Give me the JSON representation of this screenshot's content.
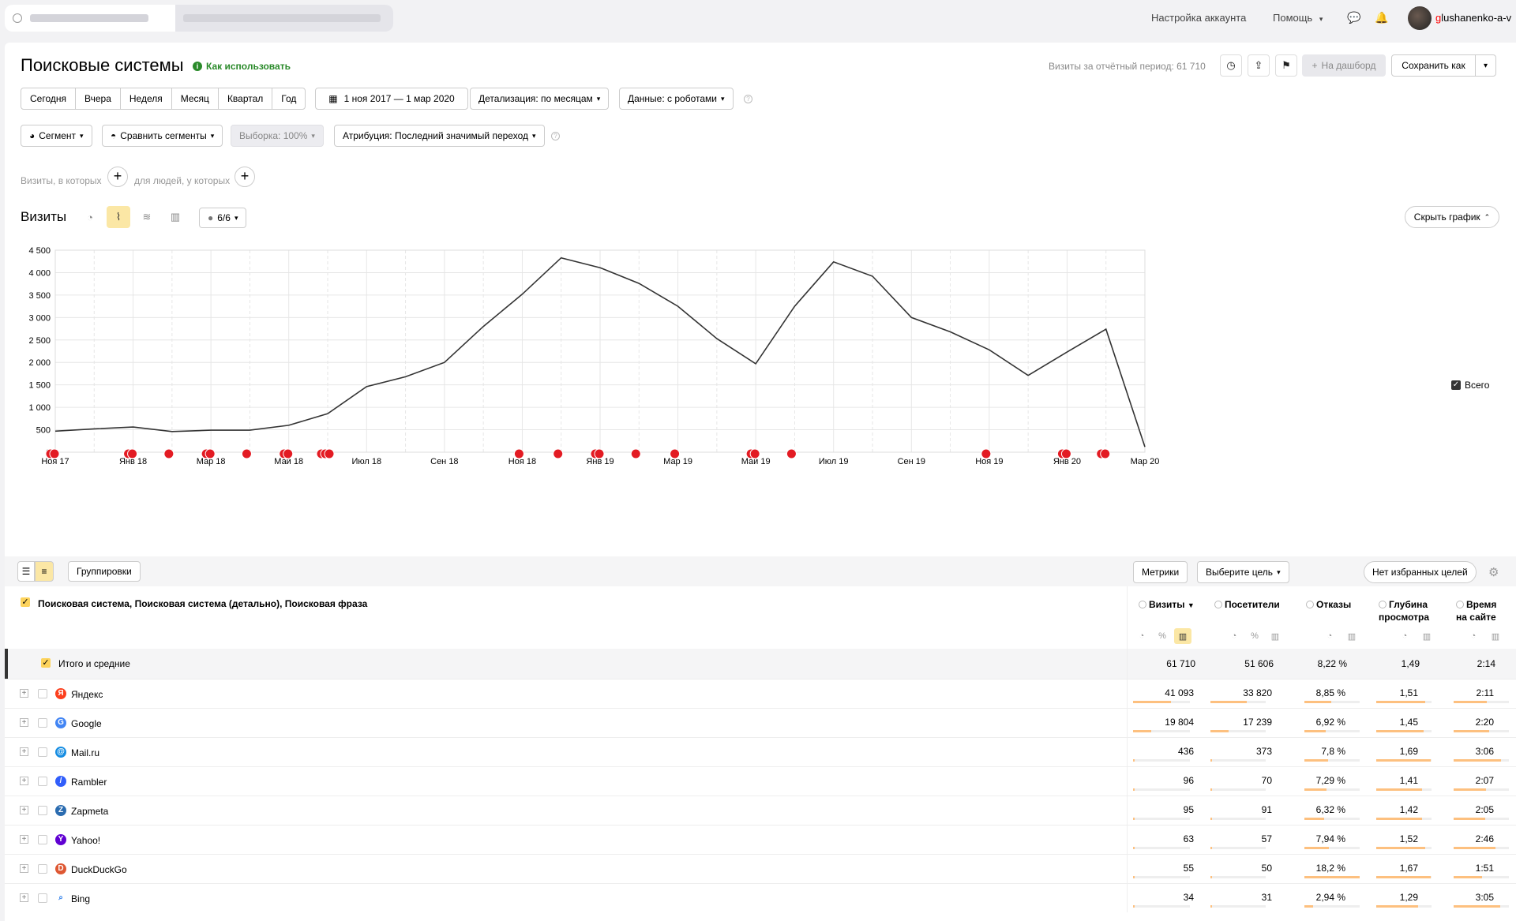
{
  "topbar": {
    "account_settings": "Настройка аккаунта",
    "help": "Помощь",
    "username_first": "g",
    "username_rest": "lushanenko-a-v"
  },
  "header": {
    "title": "Поисковые системы",
    "how_to_use": "Как использовать",
    "visits_period": "Визиты за отчётный период: 61 710",
    "dashboard": "На дашборд",
    "save_as": "Сохранить как"
  },
  "periods": [
    "Сегодня",
    "Вчера",
    "Неделя",
    "Месяц",
    "Квартал",
    "Год"
  ],
  "filters": {
    "date_range": "1 ноя 2017 — 1 мар 2020",
    "detail": "Детализация: по месяцам",
    "data": "Данные: с роботами",
    "segment": "Сегмент",
    "compare": "Сравнить сегменты",
    "sample": "Выборка: 100%",
    "attribution": "Атрибуция: Последний значимый переход",
    "visits_where": "Визиты, в которых",
    "people_where": "для людей, у которых"
  },
  "chart_controls": {
    "title": "Визиты",
    "series_count": "6/6",
    "hide_chart": "Скрыть график",
    "legend": "Всего"
  },
  "chart_data": {
    "type": "line",
    "x": [
      "Ноя 17",
      "Дек 17",
      "Янв 18",
      "Фев 18",
      "Мар 18",
      "Апр 18",
      "Май 18",
      "Июн 18",
      "Июл 18",
      "Авг 18",
      "Сен 18",
      "Окт 18",
      "Ноя 18",
      "Дек 18",
      "Янв 19",
      "Фев 19",
      "Мар 19",
      "Апр 19",
      "Май 19",
      "Июн 19",
      "Июл 19",
      "Авг 19",
      "Сен 19",
      "Окт 19",
      "Ноя 19",
      "Дек 19",
      "Янв 20",
      "Фев 20",
      "Мар 20"
    ],
    "x_tick_labels": [
      "Ноя 17",
      "Янв 18",
      "Мар 18",
      "Май 18",
      "Июл 18",
      "Сен 18",
      "Ноя 18",
      "Янв 19",
      "Мар 19",
      "Май 19",
      "Июл 19",
      "Сен 19",
      "Ноя 19",
      "Янв 20",
      "Мар 20"
    ],
    "series": [
      {
        "name": "Всего",
        "values": [
          470,
          520,
          560,
          460,
          490,
          490,
          600,
          860,
          1460,
          1680,
          2000,
          2800,
          3520,
          4330,
          4110,
          3760,
          3250,
          2530,
          1970,
          3250,
          4240,
          3920,
          3000,
          2680,
          2280,
          1710,
          2230,
          2740,
          120
        ]
      }
    ],
    "y_ticks": [
      0,
      500,
      1000,
      1500,
      2000,
      2500,
      3000,
      3500,
      4000,
      4500
    ],
    "ylim": [
      0,
      4500
    ],
    "grid": true,
    "legend_position": "right"
  },
  "table": {
    "view_label": "Группировки",
    "metrics_label": "Метрики",
    "goal_label": "Выберите цель",
    "fav_goals": "Нет избранных целей",
    "dimension_header": "Поисковая система, Поисковая система (детально), Поисковая фраза",
    "columns": [
      "Визиты",
      "Посетители",
      "Отказы",
      "Глубина просмотра",
      "Время на сайте"
    ],
    "col_visits": "Визиты",
    "col_visitors": "Посетители",
    "col_bounce": "Отказы",
    "col_depth_1": "Глубина",
    "col_depth_2": "просмотра",
    "col_time_1": "Время",
    "col_time_2": "на сайте",
    "total": {
      "label": "Итого и средние",
      "visits": "61 710",
      "visitors": "51 606",
      "bounce": "8,22 %",
      "depth": "1,49",
      "time": "2:14"
    },
    "rows": [
      {
        "name": "Яндекс",
        "icon": "yandex-icon",
        "color": "#fc3f1d",
        "visits": "41 093",
        "visitors": "33 820",
        "bounce": "8,85 %",
        "depth": "1,51",
        "time": "2:11",
        "v": 0.666,
        "u": 0.655,
        "b": 0.49,
        "d": 0.88,
        "t": 0.6
      },
      {
        "name": "Google",
        "icon": "google-icon",
        "color": "#4285f4",
        "visits": "19 804",
        "visitors": "17 239",
        "bounce": "6,92 %",
        "depth": "1,45",
        "time": "2:20",
        "v": 0.321,
        "u": 0.334,
        "b": 0.38,
        "d": 0.85,
        "t": 0.64
      },
      {
        "name": "Mail.ru",
        "icon": "mailru-icon",
        "color": "#168de2",
        "visits": "436",
        "visitors": "373",
        "bounce": "7,8 %",
        "depth": "1,69",
        "time": "3:06",
        "v": 0.007,
        "u": 0.007,
        "b": 0.43,
        "d": 0.99,
        "t": 0.85
      },
      {
        "name": "Rambler",
        "icon": "rambler-icon",
        "color": "#315efb",
        "visits": "96",
        "visitors": "70",
        "bounce": "7,29 %",
        "depth": "1,41",
        "time": "2:07",
        "v": 0.002,
        "u": 0.001,
        "b": 0.4,
        "d": 0.83,
        "t": 0.58
      },
      {
        "name": "Zapmeta",
        "icon": "zapmeta-icon",
        "color": "#2b6cb0",
        "visits": "95",
        "visitors": "91",
        "bounce": "6,32 %",
        "depth": "1,42",
        "time": "2:05",
        "v": 0.002,
        "u": 0.002,
        "b": 0.35,
        "d": 0.83,
        "t": 0.57
      },
      {
        "name": "Yahoo!",
        "icon": "yahoo-icon",
        "color": "#6001d2",
        "visits": "63",
        "visitors": "57",
        "bounce": "7,94 %",
        "depth": "1,52",
        "time": "2:46",
        "v": 0.001,
        "u": 0.001,
        "b": 0.44,
        "d": 0.89,
        "t": 0.76
      },
      {
        "name": "DuckDuckGo",
        "icon": "duckduckgo-icon",
        "color": "#de5833",
        "visits": "55",
        "visitors": "50",
        "bounce": "18,2 %",
        "depth": "1,67",
        "time": "1:51",
        "v": 0.001,
        "u": 0.001,
        "b": 1.0,
        "d": 0.98,
        "t": 0.51
      },
      {
        "name": "Bing",
        "icon": "bing-icon",
        "color": "#ffffff",
        "visits": "34",
        "visitors": "31",
        "bounce": "2,94 %",
        "depth": "1,29",
        "time": "3:05",
        "v": 0.001,
        "u": 0.001,
        "b": 0.16,
        "d": 0.76,
        "t": 0.84
      }
    ]
  }
}
